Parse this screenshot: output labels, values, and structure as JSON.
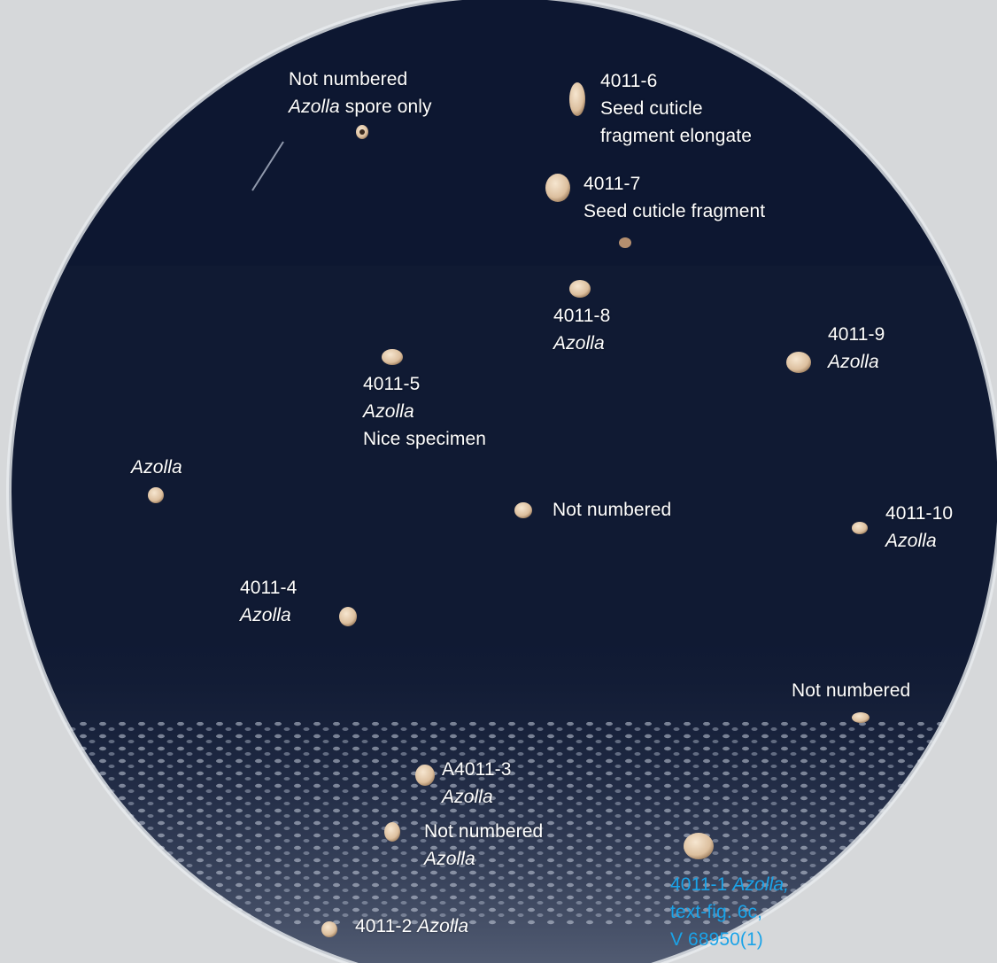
{
  "labels": {
    "top_left_not_numbered": {
      "line1": "Not numbered",
      "line2_italic": "Azolla",
      "line2_rest": " spore only"
    },
    "s4011_6": {
      "line1": "4011-6",
      "line2": "Seed cuticle",
      "line3": "fragment elongate"
    },
    "s4011_7": {
      "line1": "4011-7",
      "line2": "Seed cuticle fragment"
    },
    "s4011_8": {
      "line1": "4011-8",
      "line2_italic": "Azolla"
    },
    "s4011_9": {
      "line1": "4011-9",
      "line2_italic": "Azolla"
    },
    "s4011_5": {
      "line1": "4011-5",
      "line2_italic": "Azolla",
      "line3": "Nice specimen"
    },
    "left_azolla": {
      "line1_italic": "Azolla"
    },
    "center_not_numbered": {
      "line1": "Not numbered"
    },
    "s4011_10": {
      "line1": "4011-10",
      "line2_italic": "Azolla"
    },
    "s4011_4": {
      "line1": "4011-4",
      "line2_italic": "Azolla"
    },
    "right_not_numbered": {
      "line1": "Not numbered"
    },
    "sA4011_3": {
      "line1": "A4011-3",
      "line2_italic": "Azolla"
    },
    "bottom_not_numbered": {
      "line1": "Not numbered",
      "line2_italic": "Azolla"
    },
    "s4011_2": {
      "line1": "4011-2 ",
      "line1_italic": "Azolla"
    },
    "s4011_1": {
      "line1": "4011-1 ",
      "line1_italic": "Azolla,",
      "line2": "text-fig. 6c,",
      "line3": "V 68950(1)"
    }
  },
  "colors": {
    "slide_background": "#101a33",
    "label_text": "#ffffff",
    "highlight_label_text": "#1aa3e8",
    "specimen": "#e6cdb2",
    "outer_background": "#d6d8da"
  }
}
